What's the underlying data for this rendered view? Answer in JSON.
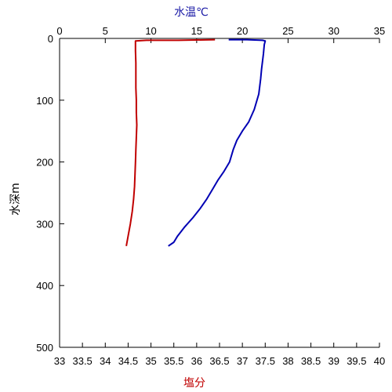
{
  "chart_data": {
    "type": "line",
    "title": "",
    "top_axis": {
      "label": "水温℃",
      "range": [
        0,
        35
      ],
      "ticks": [
        "0",
        "5",
        "10",
        "15",
        "20",
        "25",
        "30",
        "35"
      ]
    },
    "bottom_axis": {
      "label": "塩分",
      "range": [
        33,
        40
      ],
      "ticks": [
        "33",
        "33.5",
        "34",
        "34.5",
        "35",
        "35.5",
        "36",
        "36.5",
        "37",
        "37.5",
        "38",
        "38.5",
        "39",
        "39.5",
        "40"
      ]
    },
    "y_axis": {
      "label": "水深m",
      "range": [
        0,
        500
      ],
      "inverted": true,
      "ticks": [
        "0",
        "100",
        "200",
        "300",
        "400",
        "500"
      ]
    },
    "grid": false,
    "series": [
      {
        "axis": "salinity",
        "color": "#c00000",
        "points": [
          [
            36.4,
            2
          ],
          [
            35.6,
            3
          ],
          [
            34.9,
            3
          ],
          [
            34.66,
            4
          ],
          [
            34.66,
            6
          ],
          [
            34.66,
            20
          ],
          [
            34.67,
            40
          ],
          [
            34.67,
            60
          ],
          [
            34.67,
            80
          ],
          [
            34.68,
            100
          ],
          [
            34.68,
            120
          ],
          [
            34.69,
            140
          ],
          [
            34.68,
            160
          ],
          [
            34.67,
            180
          ],
          [
            34.66,
            200
          ],
          [
            34.65,
            220
          ],
          [
            34.64,
            240
          ],
          [
            34.62,
            260
          ],
          [
            34.59,
            280
          ],
          [
            34.55,
            300
          ],
          [
            34.5,
            320
          ],
          [
            34.46,
            336
          ]
        ]
      },
      {
        "axis": "temperature",
        "color": "#0000b4",
        "points": [
          [
            18.5,
            2
          ],
          [
            20.5,
            2
          ],
          [
            22.2,
            3
          ],
          [
            22.5,
            4
          ],
          [
            22.4,
            10
          ],
          [
            22.3,
            25
          ],
          [
            22.1,
            50
          ],
          [
            22.0,
            65
          ],
          [
            21.8,
            90
          ],
          [
            21.3,
            115
          ],
          [
            20.7,
            135
          ],
          [
            20.0,
            150
          ],
          [
            19.4,
            165
          ],
          [
            19.0,
            180
          ],
          [
            18.6,
            200
          ],
          [
            18.0,
            215
          ],
          [
            17.3,
            230
          ],
          [
            16.7,
            245
          ],
          [
            16.1,
            260
          ],
          [
            15.4,
            275
          ],
          [
            14.6,
            290
          ],
          [
            13.7,
            305
          ],
          [
            12.9,
            320
          ],
          [
            12.5,
            330
          ],
          [
            11.9,
            336
          ]
        ]
      }
    ]
  }
}
